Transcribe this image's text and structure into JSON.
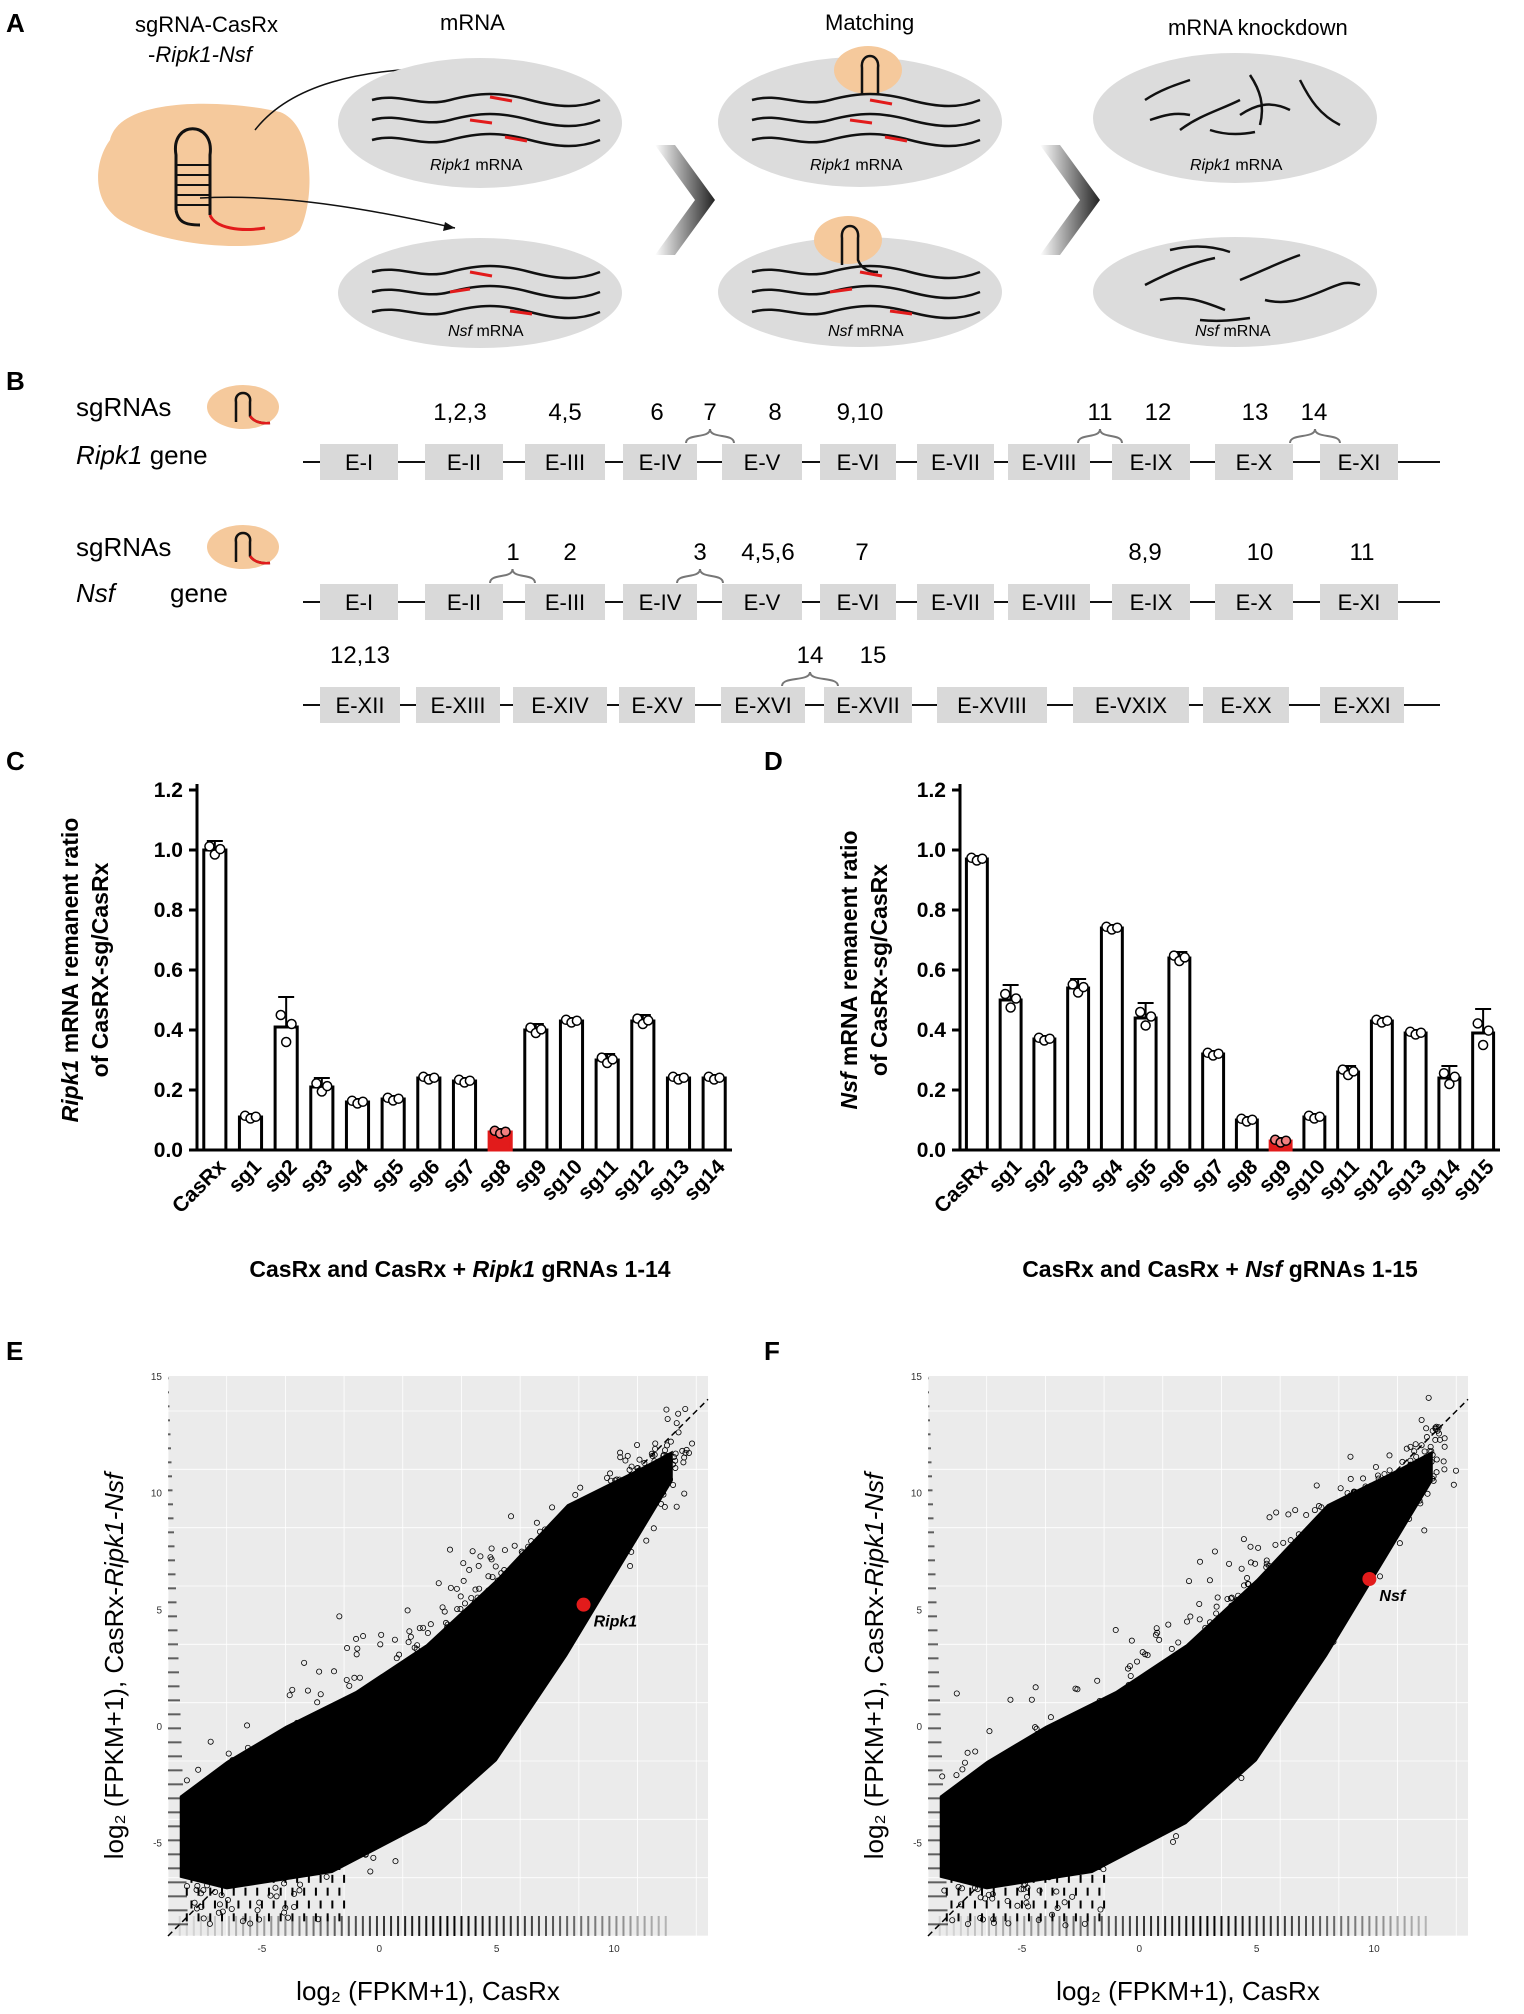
{
  "panel_a": {
    "letter": "A",
    "plasmid_label_line1": "sgRNA-CasRx",
    "plasmid_label_line2_prefix": "-",
    "plasmid_label_line2_italic": "Ripk1-Nsf",
    "stage_titles": [
      "mRNA",
      "Matching",
      "mRNA knockdown"
    ],
    "ripk1_italic": "Ripk1",
    "nsf_italic": "Nsf",
    "mrna_suffix": " mRNA",
    "colors": {
      "orange": "#f5c99c",
      "grey": "#dcdcdc",
      "red": "#e21b1b"
    }
  },
  "panel_b": {
    "letter": "B",
    "sgrnas_label": "sgRNAs",
    "ripk1_gene_italic": "Ripk1",
    "nsf_gene_italic": "Nsf",
    "gene_word": " gene",
    "nsf_gene_word": "gene",
    "ripk1_exons": [
      "E-I",
      "E-II",
      "E-III",
      "E-IV",
      "E-V",
      "E-VI",
      "E-VII",
      "E-VIII",
      "E-IX",
      "E-X",
      "E-XI"
    ],
    "ripk1_sg_labels": [
      "1,2,3",
      "4,5",
      "6",
      "7",
      "8",
      "9,10",
      "11",
      "12",
      "13",
      "14"
    ],
    "nsf_exons_row1": [
      "E-I",
      "E-II",
      "E-III",
      "E-IV",
      "E-V",
      "E-VI",
      "E-VII",
      "E-VIII",
      "E-IX",
      "E-X",
      "E-XI"
    ],
    "nsf_sg_labels_row1": [
      "1",
      "2",
      "3",
      "4,5,6",
      "7",
      "8,9",
      "10",
      "11"
    ],
    "nsf_exons_row2": [
      "E-XII",
      "E-XIII",
      "E-XIV",
      "E-XV",
      "E-XVI",
      "E-XVII",
      "E-XVIII",
      "E-VXIX",
      "E-XX",
      "E-XXI"
    ],
    "nsf_sg_labels_row2": [
      "12,13",
      "14",
      "15"
    ]
  },
  "chart_data": [
    {
      "panel": "C",
      "type": "bar",
      "title": "",
      "ylabel_italic": "Ripk1",
      "ylabel_rest": " mRNA remanent ratio",
      "ylabel_line2": "of CasRX-sg/CasRx",
      "xlabel_prefix": "CasRx and CasRx  + ",
      "xlabel_italic": "Ripk1",
      "xlabel_suffix": " gRNAs 1-14",
      "categories": [
        "CasRx",
        "sg1",
        "sg2",
        "sg3",
        "sg4",
        "sg5",
        "sg6",
        "sg7",
        "sg8",
        "sg9",
        "sg10",
        "sg11",
        "sg12",
        "sg13",
        "sg14"
      ],
      "values": [
        1.0,
        0.11,
        0.41,
        0.21,
        0.16,
        0.17,
        0.24,
        0.23,
        0.06,
        0.4,
        0.43,
        0.3,
        0.43,
        0.24,
        0.24
      ],
      "errors": [
        0.03,
        0.01,
        0.1,
        0.03,
        0.01,
        0.01,
        0.01,
        0.01,
        0.01,
        0.02,
        0.01,
        0.02,
        0.02,
        0.01,
        0.01
      ],
      "highlight_index": 8,
      "ylim": [
        0,
        1.2
      ],
      "yticks": [
        "0.0",
        "0.2",
        "0.4",
        "0.6",
        "0.8",
        "1.0",
        "1.2"
      ],
      "ytick_values": [
        0,
        0.2,
        0.4,
        0.6,
        0.8,
        1.0,
        1.2
      ]
    },
    {
      "panel": "D",
      "type": "bar",
      "title": "",
      "ylabel_italic": "Nsf",
      "ylabel_rest": " mRNA remanent ratio",
      "ylabel_line2": "of CasRx-sg/CasRx",
      "xlabel_prefix": "CasRx and CasRx  + ",
      "xlabel_italic": "Nsf",
      "xlabel_suffix": " gRNAs 1-15",
      "categories": [
        "CasRx",
        "sg1",
        "sg2",
        "sg3",
        "sg4",
        "sg5",
        "sg6",
        "sg7",
        "sg8",
        "sg9",
        "sg10",
        "sg11",
        "sg12",
        "sg13",
        "sg14",
        "sg15"
      ],
      "values": [
        0.97,
        0.5,
        0.37,
        0.54,
        0.74,
        0.44,
        0.64,
        0.32,
        0.1,
        0.03,
        0.11,
        0.26,
        0.43,
        0.39,
        0.24,
        0.39
      ],
      "errors": [
        0.01,
        0.05,
        0.01,
        0.03,
        0.01,
        0.05,
        0.02,
        0.01,
        0.01,
        0.01,
        0.01,
        0.02,
        0.01,
        0.01,
        0.04,
        0.08
      ],
      "highlight_index": 9,
      "ylim": [
        0,
        1.2
      ],
      "yticks": [
        "0.0",
        "0.2",
        "0.4",
        "0.6",
        "0.8",
        "1.0",
        "1.2"
      ],
      "ytick_values": [
        0,
        0.2,
        0.4,
        0.6,
        0.8,
        1.0,
        1.2
      ]
    },
    {
      "panel": "E",
      "type": "scatter",
      "xlabel": "log₂  (FPKM+1),  CasRx",
      "ylabel_prefix": "log₂  (FPKM+1),  CasRx-",
      "ylabel_italic": "Ripk1-Nsf",
      "xlim": [
        -9,
        14
      ],
      "ylim": [
        -9,
        15
      ],
      "xticks": [
        "-5",
        "0",
        "5",
        "10"
      ],
      "xtick_values": [
        -5,
        0,
        5,
        10
      ],
      "yticks": [
        "-5",
        "0",
        "5",
        "10",
        "15"
      ],
      "ytick_values": [
        -5,
        0,
        5,
        10,
        15
      ],
      "highlight": {
        "label": "Ripk1",
        "x": 8.7,
        "y": 5.2
      }
    },
    {
      "panel": "F",
      "type": "scatter",
      "xlabel": "log₂  (FPKM+1),  CasRx",
      "ylabel_prefix": "log₂  (FPKM+1),  CasRx-",
      "ylabel_italic": "Ripk1-Nsf",
      "xlim": [
        -9,
        14
      ],
      "ylim": [
        -9,
        15
      ],
      "xticks": [
        "-5",
        "0",
        "5",
        "10"
      ],
      "xtick_values": [
        -5,
        0,
        5,
        10
      ],
      "yticks": [
        "-5",
        "0",
        "5",
        "10",
        "15"
      ],
      "ytick_values": [
        -5,
        0,
        5,
        10,
        15
      ],
      "highlight": {
        "label": "Nsf",
        "x": 9.8,
        "y": 6.3
      }
    }
  ],
  "letters": {
    "C": "C",
    "D": "D",
    "E": "E",
    "F": "F"
  }
}
